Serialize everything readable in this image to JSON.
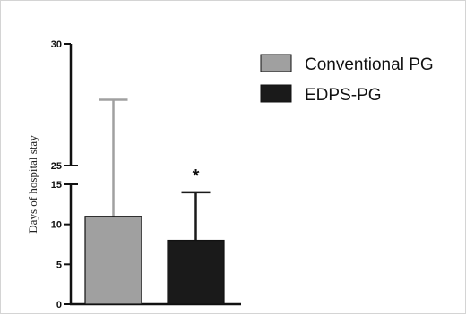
{
  "chart_data": {
    "type": "bar",
    "title": "",
    "xlabel": "",
    "ylabel": "Days of hospital stay",
    "y_axis_break": {
      "lower_segment": [
        0,
        15
      ],
      "upper_segment": [
        25,
        30
      ]
    },
    "yticks_lower": [
      0,
      5,
      10,
      15
    ],
    "yticks_upper": [
      25,
      30
    ],
    "grid": false,
    "legend_position": "top-right",
    "categories": [
      "Conventional PG",
      "EDPS-PG"
    ],
    "series": [
      {
        "name": "Conventional PG",
        "value": 11,
        "error_upper": 27.7,
        "color": "#a0a0a0"
      },
      {
        "name": "EDPS-PG",
        "value": 8,
        "error_upper": 14,
        "color": "#1a1a1a"
      }
    ],
    "annotations": [
      {
        "text": "*",
        "category": "EDPS-PG"
      }
    ]
  }
}
